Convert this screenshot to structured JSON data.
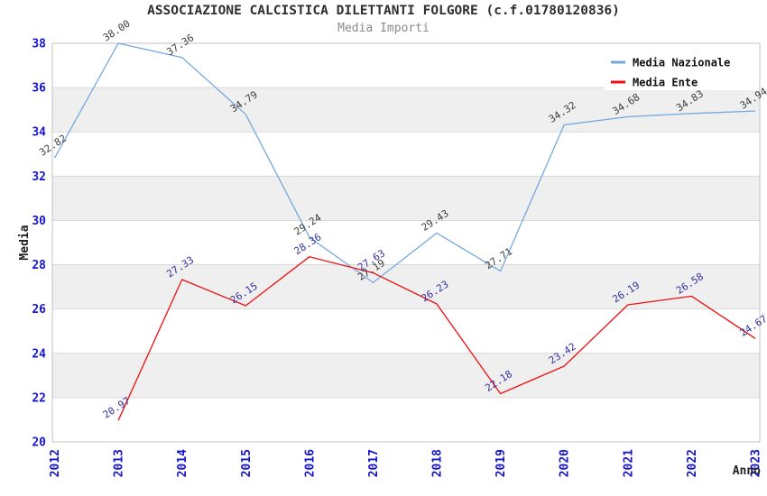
{
  "chart_data": {
    "type": "line",
    "title": "ASSOCIAZIONE CALCISTICA DILETTANTI FOLGORE (c.f.01780120836)",
    "subtitle": "Media Importi",
    "xlabel": "Anno",
    "ylabel": "Media",
    "x": [
      2012,
      2013,
      2014,
      2015,
      2016,
      2017,
      2018,
      2019,
      2020,
      2021,
      2022,
      2023
    ],
    "ylim": [
      20,
      38
    ],
    "ytick_step": 2,
    "yticks": [
      20,
      22,
      24,
      26,
      28,
      30,
      32,
      34,
      36,
      38
    ],
    "grid": "horizontal-bands",
    "legend_position": "top-right",
    "series": [
      {
        "name": "Media Nazionale",
        "color": "#74a9dc",
        "label_color": "#3c3c3c",
        "values": [
          32.82,
          38.0,
          37.36,
          34.79,
          29.24,
          27.19,
          29.43,
          27.71,
          34.32,
          34.68,
          34.83,
          34.94
        ]
      },
      {
        "name": "Media Ente",
        "color": "#ee0f0f",
        "label_color": "#30309e",
        "values": [
          null,
          20.97,
          27.33,
          26.15,
          28.36,
          27.63,
          26.23,
          22.18,
          23.42,
          26.19,
          26.58,
          24.67
        ]
      }
    ],
    "colors": {
      "band_fill": "#efefef",
      "band_alt_fill": "#ffffff",
      "gridline": "#d9d9d9",
      "plot_border": "#c2c2c2",
      "tick_text": "#1515cb",
      "legend_background": "#ffffff"
    }
  }
}
